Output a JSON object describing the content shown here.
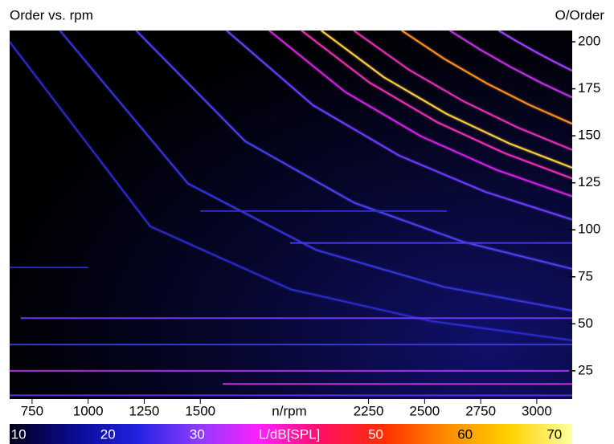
{
  "chart_data": {
    "type": "order-map",
    "title": "Order vs. rpm",
    "x_label": "n/rpm",
    "y_label": "O/Order",
    "xlim": [
      650,
      3158
    ],
    "xticks": [
      750,
      1000,
      1250,
      1500,
      2250,
      2500,
      2750,
      3000
    ],
    "ylim": [
      10,
      206
    ],
    "yticks": [
      25,
      50,
      75,
      100,
      125,
      150,
      175,
      200
    ],
    "series": [
      {
        "color": "#2a2ac8",
        "x": [
          650,
          1277,
          1904,
          2531,
          3158
        ],
        "y": [
          200,
          101.8,
          68.3,
          51.4,
          41.2
        ]
      },
      {
        "color": "#3434d8",
        "x": [
          874,
          1445,
          2016,
          2587,
          3158
        ],
        "y": [
          206,
          124.6,
          89.3,
          69.6,
          57.0
        ]
      },
      {
        "color": "#4a40f0",
        "x": [
          1214,
          1700,
          2186,
          2672,
          3158
        ],
        "y": [
          206,
          147.1,
          114.4,
          93.6,
          79.2
        ]
      },
      {
        "color": "#6a3cff",
        "x": [
          1617,
          2002,
          2388,
          2773,
          3158
        ],
        "y": [
          206,
          166.3,
          139.4,
          120.1,
          105.4
        ]
      },
      {
        "color": "#d020e0",
        "x": [
          1807,
          2145,
          2483,
          2820,
          3158
        ],
        "y": [
          206,
          173.4,
          149.8,
          131.9,
          117.8
        ]
      },
      {
        "color": "#e830b0",
        "x": [
          1951,
          2253,
          2555,
          2856,
          3158
        ],
        "y": [
          206,
          178.4,
          157.3,
          140.8,
          127.3
        ]
      },
      {
        "color": "#ffd040",
        "x": [
          2039,
          2319,
          2599,
          2878,
          3158
        ],
        "y": [
          206,
          181.1,
          161.6,
          145.9,
          133.0
        ]
      },
      {
        "color": "#e030b0",
        "x": [
          2184,
          2428,
          2671,
          2915,
          3158
        ],
        "y": [
          206,
          185.3,
          168.5,
          154.4,
          142.5
        ]
      },
      {
        "color": "#ff9020",
        "x": [
          2398,
          2588,
          2778,
          2968,
          3158
        ],
        "y": [
          206,
          190.9,
          177.8,
          166.4,
          156.4
        ]
      },
      {
        "color": "#c030e0",
        "x": [
          2612,
          2748,
          2885,
          3022,
          3158
        ],
        "y": [
          206,
          195.8,
          186.5,
          178.0,
          170.4
        ]
      },
      {
        "color": "#a040ff",
        "x": [
          2830,
          2912,
          2994,
          3076,
          3158
        ],
        "y": [
          206,
          200.2,
          194.7,
          189.5,
          184.6
        ]
      },
      {
        "color": "#5a30e0",
        "x": [
          650,
          3158
        ],
        "y": [
          12,
          12
        ]
      },
      {
        "color": "#c030d0",
        "x": [
          1600,
          3158
        ],
        "y": [
          18,
          18
        ]
      },
      {
        "color": "#a030e0",
        "x": [
          650,
          3158
        ],
        "y": [
          25,
          25
        ]
      },
      {
        "color": "#3838d8",
        "x": [
          650,
          3158
        ],
        "y": [
          39,
          39
        ]
      },
      {
        "color": "#6a38f0",
        "x": [
          700,
          3158
        ],
        "y": [
          53,
          53
        ]
      },
      {
        "color": "#2a2ab8",
        "x": [
          650,
          1000
        ],
        "y": [
          80,
          80
        ]
      },
      {
        "color": "#4a3ae0",
        "x": [
          1900,
          3158
        ],
        "y": [
          93,
          93
        ]
      },
      {
        "color": "#2e2ec0",
        "x": [
          1500,
          2600
        ],
        "y": [
          110,
          110
        ]
      }
    ],
    "colorbar": {
      "label": "L/dB[SPL]",
      "lim": [
        9,
        72
      ],
      "ticks": [
        10,
        20,
        30,
        50,
        60,
        70
      ],
      "colors": [
        "#000018",
        "#0a0a90",
        "#2020e0",
        "#8a3cff",
        "#ff20ff",
        "#ff1060",
        "#ff3000",
        "#ff8c00",
        "#ffd000",
        "#ffffa0"
      ]
    }
  }
}
